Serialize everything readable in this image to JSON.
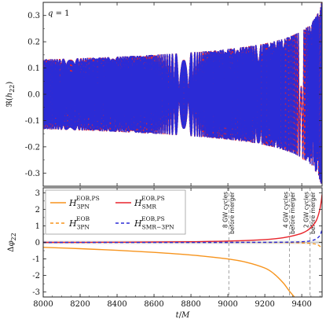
{
  "chart_data": [
    {
      "type": "line",
      "panel": "top",
      "annotation": "q = 1",
      "ylabel": "ℜ(h22)",
      "ylim": [
        -0.35,
        0.35
      ],
      "yticks": [
        -0.3,
        -0.2,
        -0.1,
        0.0,
        0.1,
        0.2,
        0.3
      ],
      "ytick_labels": [
        "-0.3",
        "-0.2",
        "-0.1",
        "0.0",
        "0.1",
        "0.2",
        "0.3"
      ],
      "xlim": [
        8000,
        9510
      ],
      "series": [
        {
          "color": "#e8242b",
          "style": "solid"
        },
        {
          "color": "#2b2bd6",
          "style": "dashed"
        }
      ]
    },
    {
      "type": "line",
      "panel": "bottom",
      "xlabel": "t/M",
      "ylabel": "Δφ22",
      "xlim": [
        8000,
        9510
      ],
      "ylim": [
        -3.3,
        3.3
      ],
      "xticks": [
        8000,
        8200,
        8400,
        8600,
        8800,
        9000,
        9200,
        9400
      ],
      "xtick_labels": [
        "8000",
        "8200",
        "8400",
        "8600",
        "8800",
        "9000",
        "9200",
        "9400"
      ],
      "yticks": [
        -3,
        -2,
        -1,
        0,
        1,
        2,
        3
      ],
      "ytick_labels": [
        "-3",
        "-2",
        "-1",
        "0",
        "1",
        "2",
        "3"
      ],
      "series": [
        {
          "name": "H3PN EOB,PS",
          "color": "#f7941d",
          "style": "solid",
          "x": [
            8000,
            8200,
            8400,
            8600,
            8800,
            9000,
            9100,
            9200,
            9250,
            9300,
            9330,
            9360
          ],
          "y": [
            -0.3,
            -0.38,
            -0.48,
            -0.6,
            -0.76,
            -1.0,
            -1.2,
            -1.55,
            -1.9,
            -2.45,
            -2.9,
            -3.3
          ]
        },
        {
          "name": "H3PN EOB",
          "color": "#f7941d",
          "style": "dashed",
          "x": [
            8000,
            9000,
            9300,
            9400,
            9450,
            9480,
            9500,
            9510
          ],
          "y": [
            0,
            0,
            -0.01,
            -0.03,
            -0.06,
            -0.12,
            -0.25,
            -0.4
          ]
        },
        {
          "name": "HSMR EOB,PS",
          "color": "#e8242b",
          "style": "solid",
          "x": [
            8000,
            8400,
            8800,
            9000,
            9200,
            9300,
            9400,
            9450,
            9480,
            9500,
            9510
          ],
          "y": [
            0,
            0.01,
            0.04,
            0.08,
            0.17,
            0.28,
            0.55,
            0.9,
            1.35,
            2.1,
            2.9
          ]
        },
        {
          "name": "HSMR-3PN EOB,PS",
          "color": "#2b2bd6",
          "style": "dashed",
          "x": [
            8000,
            9000,
            9300,
            9400,
            9450,
            9480,
            9500,
            9510
          ],
          "y": [
            0,
            0,
            0.01,
            0.04,
            0.1,
            0.22,
            0.45,
            0.8
          ]
        }
      ],
      "vlines": [
        {
          "x": 9005,
          "label": [
            "8 GW cycles",
            "before merger"
          ]
        },
        {
          "x": 9333,
          "label": [
            "4 GW cycles",
            "before merger"
          ]
        },
        {
          "x": 9445,
          "label": [
            "2 GW cycles",
            "before merger"
          ]
        }
      ],
      "legend": {
        "placement": "top-left"
      }
    }
  ],
  "legend_entries": [
    {
      "base": "H",
      "sub": "3PN",
      "sup": "EOB,PS",
      "color": "#f7941d",
      "dash": ""
    },
    {
      "base": "H",
      "sub": "3PN",
      "sup": "EOB",
      "color": "#f7941d",
      "dash": "4,3"
    },
    {
      "base": "H",
      "sub": "SMR",
      "sup": "EOB,PS",
      "color": "#e8242b",
      "dash": ""
    },
    {
      "base": "H",
      "sub": "SMR−3PN",
      "sup": "EOB,PS",
      "color": "#2b2bd6",
      "dash": "4,3"
    }
  ]
}
